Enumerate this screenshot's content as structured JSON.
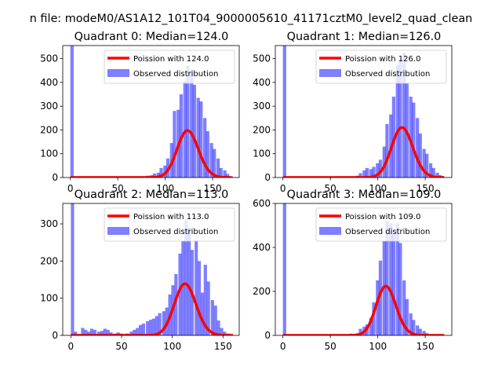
{
  "figure": {
    "suptitle": "n file: modeM0/AS1A12_101T04_9000005610_41171cztM0_level2_quad_clean"
  },
  "colors": {
    "observed": "#0000ff",
    "observed_alpha": 0.5,
    "poisson": "#ff0000"
  },
  "chart_data": [
    {
      "type": "bar",
      "title": "Quadrant 0: Median=124.0",
      "xticks": [
        "0",
        "50",
        "100",
        "150"
      ],
      "yticks": [
        "0",
        "100",
        "200",
        "300",
        "400",
        "500"
      ],
      "xlim": [
        -8,
        178
      ],
      "ylim": [
        0,
        555
      ],
      "bin_width": 3.5,
      "legend": {
        "position": "top-right",
        "labels": [
          "Poission with 124.0",
          "Observed distribution"
        ]
      },
      "histogram": [
        [
          0,
          555
        ],
        [
          56,
          2
        ],
        [
          66,
          3
        ],
        [
          70,
          5
        ],
        [
          73,
          3
        ],
        [
          77,
          5
        ],
        [
          80,
          8
        ],
        [
          84,
          10
        ],
        [
          87,
          17
        ],
        [
          91,
          20
        ],
        [
          94,
          40
        ],
        [
          98,
          50
        ],
        [
          101,
          80
        ],
        [
          105,
          145
        ],
        [
          108,
          280
        ],
        [
          112,
          285
        ],
        [
          115,
          350
        ],
        [
          119,
          405
        ],
        [
          122,
          470
        ],
        [
          126,
          450
        ],
        [
          129,
          390
        ],
        [
          133,
          335
        ],
        [
          136,
          320
        ],
        [
          140,
          250
        ],
        [
          143,
          195
        ],
        [
          147,
          145
        ],
        [
          150,
          120
        ],
        [
          154,
          80
        ],
        [
          157,
          40
        ],
        [
          161,
          30
        ],
        [
          164,
          15
        ],
        [
          168,
          5
        ]
      ],
      "poisson": {
        "lambda": 124,
        "scale": 5520,
        "xmax": 170
      }
    },
    {
      "type": "bar",
      "title": "Quadrant 1: Median=126.0",
      "xticks": [
        "0",
        "50",
        "100",
        "150"
      ],
      "yticks": [
        "0",
        "100",
        "200",
        "300",
        "400",
        "500"
      ],
      "xlim": [
        -8,
        178
      ],
      "ylim": [
        0,
        555
      ],
      "bin_width": 3.5,
      "legend": {
        "position": "top-right",
        "labels": [
          "Poission with 126.0",
          "Observed distribution"
        ]
      },
      "histogram": [
        [
          0,
          555
        ],
        [
          66,
          3
        ],
        [
          70,
          5
        ],
        [
          77,
          8
        ],
        [
          80,
          18
        ],
        [
          84,
          30
        ],
        [
          87,
          40
        ],
        [
          91,
          35
        ],
        [
          94,
          45
        ],
        [
          98,
          60
        ],
        [
          101,
          75
        ],
        [
          105,
          130
        ],
        [
          108,
          225
        ],
        [
          112,
          265
        ],
        [
          115,
          340
        ],
        [
          119,
          470
        ],
        [
          122,
          500
        ],
        [
          126,
          525
        ],
        [
          129,
          395
        ],
        [
          133,
          340
        ],
        [
          136,
          315
        ],
        [
          140,
          250
        ],
        [
          143,
          185
        ],
        [
          147,
          120
        ],
        [
          150,
          100
        ],
        [
          154,
          60
        ],
        [
          157,
          40
        ],
        [
          161,
          20
        ],
        [
          164,
          10
        ]
      ],
      "poisson": {
        "lambda": 126,
        "scale": 5920,
        "xmax": 170
      }
    },
    {
      "type": "bar",
      "title": "Quadrant 2: Median=113.0",
      "xticks": [
        "0",
        "50",
        "100",
        "150"
      ],
      "yticks": [
        "0",
        "100",
        "200",
        "300"
      ],
      "xlim": [
        -8,
        166
      ],
      "ylim": [
        0,
        355
      ],
      "bin_width": 3.2,
      "legend": {
        "position": "top-right",
        "labels": [
          "Poission with 113.0",
          "Observed distribution"
        ]
      },
      "histogram": [
        [
          0,
          355
        ],
        [
          3,
          10
        ],
        [
          6,
          3
        ],
        [
          10,
          20
        ],
        [
          13,
          15
        ],
        [
          16,
          10
        ],
        [
          19,
          18
        ],
        [
          22,
          15
        ],
        [
          26,
          10
        ],
        [
          29,
          12
        ],
        [
          32,
          18
        ],
        [
          35,
          15
        ],
        [
          38,
          8
        ],
        [
          42,
          5
        ],
        [
          45,
          8
        ],
        [
          48,
          5
        ],
        [
          51,
          3
        ],
        [
          54,
          5
        ],
        [
          58,
          10
        ],
        [
          61,
          15
        ],
        [
          64,
          20
        ],
        [
          67,
          28
        ],
        [
          70,
          32
        ],
        [
          74,
          38
        ],
        [
          77,
          42
        ],
        [
          80,
          45
        ],
        [
          83,
          52
        ],
        [
          86,
          60
        ],
        [
          90,
          65
        ],
        [
          93,
          75
        ],
        [
          96,
          110
        ],
        [
          99,
          135
        ],
        [
          102,
          165
        ],
        [
          106,
          220
        ],
        [
          109,
          255
        ],
        [
          112,
          310
        ],
        [
          115,
          290
        ],
        [
          118,
          230
        ],
        [
          122,
          255
        ],
        [
          125,
          200
        ],
        [
          128,
          115
        ],
        [
          131,
          190
        ],
        [
          134,
          145
        ],
        [
          138,
          95
        ],
        [
          141,
          80
        ],
        [
          144,
          40
        ],
        [
          147,
          20
        ],
        [
          150,
          10
        ],
        [
          154,
          5
        ]
      ],
      "poisson": {
        "lambda": 113,
        "scale": 3700,
        "xmax": 160
      }
    },
    {
      "type": "bar",
      "title": "Quadrant 3: Median=109.0",
      "xticks": [
        "0",
        "50",
        "100",
        "150"
      ],
      "yticks": [
        "0",
        "200",
        "400",
        "600"
      ],
      "xlim": [
        -8,
        178
      ],
      "ylim": [
        0,
        600
      ],
      "bin_width": 3.5,
      "legend": {
        "position": "top-right",
        "labels": [
          "Poission with 109.0",
          "Observed distribution"
        ]
      },
      "histogram": [
        [
          0,
          600
        ],
        [
          63,
          3
        ],
        [
          66,
          5
        ],
        [
          70,
          8
        ],
        [
          73,
          5
        ],
        [
          77,
          10
        ],
        [
          80,
          30
        ],
        [
          84,
          40
        ],
        [
          87,
          50
        ],
        [
          91,
          80
        ],
        [
          94,
          150
        ],
        [
          98,
          250
        ],
        [
          101,
          340
        ],
        [
          105,
          430
        ],
        [
          108,
          520
        ],
        [
          112,
          510
        ],
        [
          115,
          460
        ],
        [
          119,
          510
        ],
        [
          122,
          420
        ],
        [
          126,
          250
        ],
        [
          129,
          165
        ],
        [
          133,
          100
        ],
        [
          136,
          70
        ],
        [
          140,
          45
        ],
        [
          143,
          30
        ],
        [
          147,
          20
        ],
        [
          150,
          10
        ],
        [
          154,
          5
        ]
      ],
      "poisson": {
        "lambda": 109,
        "scale": 5860,
        "xmax": 170
      }
    }
  ]
}
